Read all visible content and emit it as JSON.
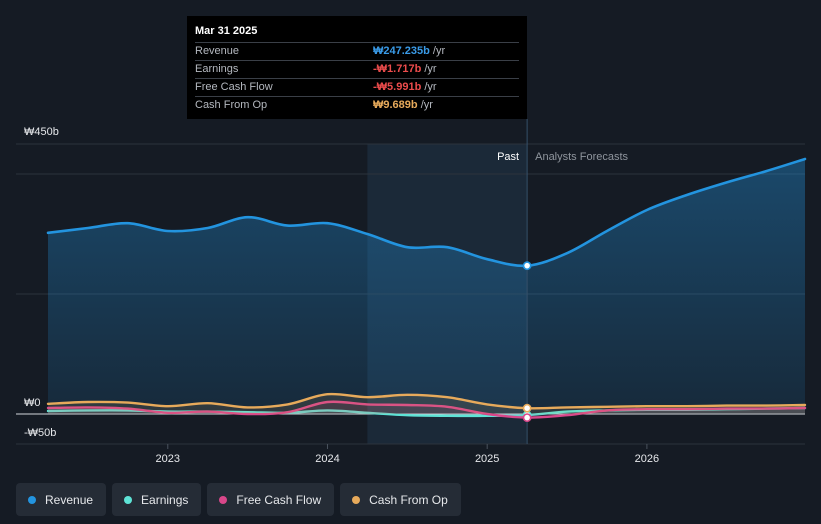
{
  "chart_data": {
    "type": "line",
    "y_tick_labels": [
      "₩450b",
      "₩0",
      "-₩50b"
    ],
    "x_tick_labels": [
      "2023",
      "2024",
      "2025",
      "2026"
    ],
    "x_ticks": [
      2023,
      2024,
      2025,
      2026
    ],
    "xlim": [
      2022.25,
      2026.99
    ],
    "ylim": [
      -50,
      450
    ],
    "past_label": "Past",
    "forecast_label": "Analysts Forecasts",
    "past_start": 2024.25,
    "divider_x": 2025.25,
    "series": [
      {
        "name": "Revenue",
        "color": "#2394df",
        "points": [
          [
            2022.25,
            302
          ],
          [
            2022.5,
            310
          ],
          [
            2022.75,
            318
          ],
          [
            2023.0,
            305
          ],
          [
            2023.25,
            310
          ],
          [
            2023.5,
            328
          ],
          [
            2023.75,
            314
          ],
          [
            2024.0,
            318
          ],
          [
            2024.25,
            300
          ],
          [
            2024.5,
            278
          ],
          [
            2024.75,
            278
          ],
          [
            2025.0,
            258
          ],
          [
            2025.25,
            247.2
          ],
          [
            2025.5,
            268
          ],
          [
            2025.75,
            305
          ],
          [
            2026.0,
            340
          ],
          [
            2026.25,
            365
          ],
          [
            2026.5,
            386
          ],
          [
            2026.75,
            405
          ],
          [
            2026.99,
            425
          ]
        ]
      },
      {
        "name": "Earnings",
        "color": "#5ee3d6",
        "points": [
          [
            2022.25,
            5
          ],
          [
            2022.5,
            6
          ],
          [
            2022.75,
            6
          ],
          [
            2023.0,
            4
          ],
          [
            2023.25,
            4
          ],
          [
            2023.5,
            3
          ],
          [
            2023.75,
            2
          ],
          [
            2024.0,
            6
          ],
          [
            2024.25,
            2
          ],
          [
            2024.5,
            -2
          ],
          [
            2024.75,
            -3
          ],
          [
            2025.0,
            -3
          ],
          [
            2025.25,
            -1.7
          ],
          [
            2025.5,
            4
          ],
          [
            2025.75,
            6
          ],
          [
            2026.0,
            7
          ],
          [
            2026.25,
            7
          ],
          [
            2026.5,
            8
          ],
          [
            2026.75,
            9
          ],
          [
            2026.99,
            10
          ]
        ]
      },
      {
        "name": "Free Cash Flow",
        "color": "#d9478a",
        "points": [
          [
            2022.25,
            10
          ],
          [
            2022.5,
            11
          ],
          [
            2022.75,
            9
          ],
          [
            2023.0,
            2
          ],
          [
            2023.25,
            4
          ],
          [
            2023.5,
            0
          ],
          [
            2023.75,
            3
          ],
          [
            2024.0,
            20
          ],
          [
            2024.25,
            16
          ],
          [
            2024.5,
            15
          ],
          [
            2024.75,
            12
          ],
          [
            2025.0,
            0
          ],
          [
            2025.25,
            -6.0
          ],
          [
            2025.5,
            -2
          ],
          [
            2025.75,
            6
          ],
          [
            2026.0,
            8
          ],
          [
            2026.25,
            8
          ],
          [
            2026.5,
            9
          ],
          [
            2026.75,
            9
          ],
          [
            2026.99,
            10
          ]
        ]
      },
      {
        "name": "Cash From Op",
        "color": "#e7aa5b",
        "points": [
          [
            2022.25,
            17
          ],
          [
            2022.5,
            20
          ],
          [
            2022.75,
            19
          ],
          [
            2023.0,
            13
          ],
          [
            2023.25,
            18
          ],
          [
            2023.5,
            11
          ],
          [
            2023.75,
            16
          ],
          [
            2024.0,
            33
          ],
          [
            2024.25,
            28
          ],
          [
            2024.5,
            32
          ],
          [
            2024.75,
            28
          ],
          [
            2025.0,
            16
          ],
          [
            2025.25,
            9.7
          ],
          [
            2025.5,
            11
          ],
          [
            2025.75,
            12
          ],
          [
            2026.0,
            13
          ],
          [
            2026.25,
            13
          ],
          [
            2026.5,
            14
          ],
          [
            2026.75,
            14
          ],
          [
            2026.99,
            15
          ]
        ]
      }
    ]
  },
  "tooltip": {
    "date": "Mar 31 2025",
    "rows": [
      {
        "label": "Revenue",
        "value": "₩247.235b",
        "unit": " /yr",
        "color": "#3a9be8"
      },
      {
        "label": "Earnings",
        "value": "-₩1.717b",
        "unit": " /yr",
        "color": "#ec4c4c"
      },
      {
        "label": "Free Cash Flow",
        "value": "-₩5.991b",
        "unit": " /yr",
        "color": "#ec4c4c"
      },
      {
        "label": "Cash From Op",
        "value": "₩9.689b",
        "unit": " /yr",
        "color": "#e7aa5b"
      }
    ]
  },
  "legend": [
    {
      "label": "Revenue",
      "color": "#2394df"
    },
    {
      "label": "Earnings",
      "color": "#5ee3d6"
    },
    {
      "label": "Free Cash Flow",
      "color": "#d9478a"
    },
    {
      "label": "Cash From Op",
      "color": "#e7aa5b"
    }
  ]
}
